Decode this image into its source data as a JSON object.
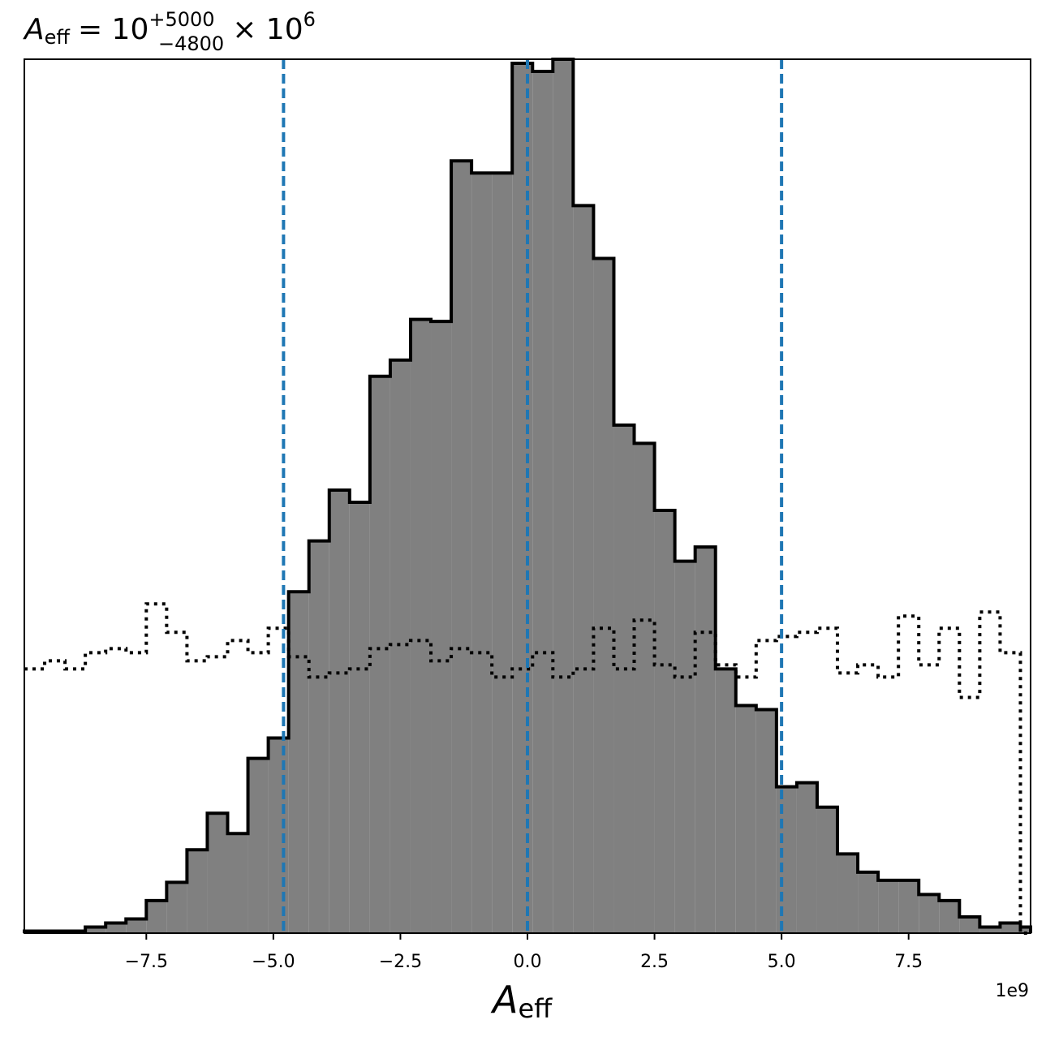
{
  "chart_data": {
    "type": "histogram",
    "title": {
      "symbol": "A",
      "subscript": "eff",
      "equals": "= 10",
      "upper": "+5000",
      "lower": "−4800",
      "multiplier": "× 10",
      "exponent": "6"
    },
    "xlabel": {
      "symbol": "A",
      "subscript": "eff"
    },
    "x_offset_text": "1e9",
    "xlim": [
      -9.9,
      9.9
    ],
    "xticks": [
      -7.5,
      -5.0,
      -2.5,
      0.0,
      2.5,
      5.0,
      7.5
    ],
    "xtick_labels": [
      "−7.5",
      "−5.0",
      "−2.5",
      "0.0",
      "2.5",
      "5.0",
      "7.5"
    ],
    "ylim": [
      0,
      215
    ],
    "grid": false,
    "bin_edges": [
      -9.9,
      -9.5,
      -9.1,
      -8.7,
      -8.3,
      -7.9,
      -7.5,
      -7.1,
      -6.7,
      -6.3,
      -5.9,
      -5.5,
      -5.1,
      -4.7,
      -4.3,
      -3.9,
      -3.5,
      -3.1,
      -2.7,
      -2.3,
      -1.9,
      -1.5,
      -1.1,
      -0.7,
      -0.3,
      0.1,
      0.5,
      0.9,
      1.3,
      1.7,
      2.1,
      2.5,
      2.9,
      3.3,
      3.7,
      4.1,
      4.5,
      4.9,
      5.3,
      5.7,
      6.1,
      6.5,
      6.9,
      7.3,
      7.7,
      8.1,
      8.5,
      8.9,
      9.3,
      9.7,
      9.9
    ],
    "posterior_counts": [
      0.5,
      0.5,
      0.5,
      1.5,
      2.5,
      3.5,
      8,
      12.5,
      20.5,
      29.5,
      24.5,
      43,
      48,
      84,
      96.5,
      109,
      106,
      137,
      141,
      151,
      150.5,
      190,
      187,
      187,
      214,
      212,
      215,
      179,
      166,
      125,
      120.5,
      104,
      91.5,
      95,
      65,
      56,
      55,
      36,
      37,
      31,
      19.5,
      15,
      13,
      13,
      9.5,
      8,
      4,
      1.5,
      2.5,
      1.5
    ],
    "prior_counts": [
      65,
      67,
      65,
      69,
      70,
      69,
      81,
      74,
      67,
      68,
      72,
      69,
      75,
      68,
      63,
      64,
      65,
      70,
      71,
      72,
      67,
      70,
      69,
      63,
      65,
      69,
      63,
      65,
      75,
      65,
      77,
      66,
      63,
      74,
      66,
      63,
      72,
      73,
      74,
      75,
      64,
      66,
      63,
      78,
      66,
      75,
      58,
      79,
      69,
      0
    ],
    "vlines": [
      {
        "x": -4.8,
        "color": "#1f77b4",
        "style": "dashed"
      },
      {
        "x": 0.0,
        "color": "#d62728",
        "style": "dashed"
      },
      {
        "x": 0.0,
        "color": "#1f77b4",
        "style": "dashed"
      },
      {
        "x": 5.0,
        "color": "#1f77b4",
        "style": "dashed"
      }
    ],
    "colors": {
      "fill": "#808080",
      "edge": "#000000",
      "quantile": "#1f77b4",
      "truth": "#ff0000"
    }
  }
}
